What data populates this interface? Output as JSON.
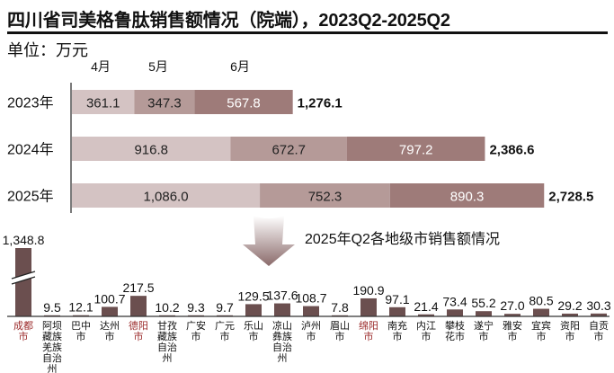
{
  "colors": {
    "month1": "#d4c3c3",
    "month2": "#b59a98",
    "month3": "#9e7b79",
    "city_bar": "#6b4f4f",
    "highlight_label": "#9b2a2a",
    "text": "#111111"
  },
  "chart_data": [
    {
      "type": "bar",
      "orientation": "horizontal",
      "stacked": true,
      "title": "四川省司美格鲁肽销售额情况（院端），2023Q2-2025Q2",
      "unit_label": "单位：万元",
      "categories": [
        "2023年",
        "2024年",
        "2025年"
      ],
      "series": [
        {
          "name": "4月",
          "values": [
            361.1,
            916.8,
            1086.0
          ],
          "labels": [
            "361.1",
            "916.8",
            "1,086.0"
          ]
        },
        {
          "name": "5月",
          "values": [
            347.3,
            672.7,
            752.3
          ],
          "labels": [
            "347.3",
            "672.7",
            "752.3"
          ]
        },
        {
          "name": "6月",
          "values": [
            567.8,
            797.2,
            890.3
          ],
          "labels": [
            "567.8",
            "797.2",
            "890.3"
          ]
        }
      ],
      "totals": [
        1276.1,
        2386.6,
        2728.5
      ],
      "total_labels": [
        "1,276.1",
        "2,386.6",
        "2,728.5"
      ],
      "xlim": [
        0,
        2800
      ],
      "grid": false
    },
    {
      "type": "bar",
      "orientation": "vertical",
      "title": "2025年Q2各地级市销售额情况",
      "axis_break_on": "成都市",
      "categories": [
        {
          "name": "成都市",
          "lines": [
            "成都",
            "市"
          ],
          "value": 1348.8,
          "label": "1,348.8",
          "highlight": true
        },
        {
          "name": "阿坝藏族羌族自治州",
          "lines": [
            "阿坝",
            "藏族",
            "羌族",
            "自治",
            "州"
          ],
          "value": 9.5,
          "label": "9.5",
          "highlight": false
        },
        {
          "name": "巴中市",
          "lines": [
            "巴中",
            "市"
          ],
          "value": 12.1,
          "label": "12.1",
          "highlight": false
        },
        {
          "name": "达州市",
          "lines": [
            "达州",
            "市"
          ],
          "value": 100.7,
          "label": "100.7",
          "highlight": false
        },
        {
          "name": "德阳市",
          "lines": [
            "德阳",
            "市"
          ],
          "value": 217.5,
          "label": "217.5",
          "highlight": true
        },
        {
          "name": "甘孜藏族自治州",
          "lines": [
            "甘孜",
            "藏族",
            "自治",
            "州"
          ],
          "value": 10.2,
          "label": "10.2",
          "highlight": false
        },
        {
          "name": "广安市",
          "lines": [
            "广安",
            "市"
          ],
          "value": 9.3,
          "label": "9.3",
          "highlight": false
        },
        {
          "name": "广元市",
          "lines": [
            "广元",
            "市"
          ],
          "value": 9.7,
          "label": "9.7",
          "highlight": false
        },
        {
          "name": "乐山市",
          "lines": [
            "乐山",
            "市"
          ],
          "value": 129.5,
          "label": "129.5",
          "highlight": false
        },
        {
          "name": "凉山彝族自治州",
          "lines": [
            "凉山",
            "彝族",
            "自治",
            "州"
          ],
          "value": 137.6,
          "label": "137.6",
          "highlight": false
        },
        {
          "name": "泸州市",
          "lines": [
            "泸州",
            "市"
          ],
          "value": 108.7,
          "label": "108.7",
          "highlight": false
        },
        {
          "name": "眉山市",
          "lines": [
            "眉山",
            "市"
          ],
          "value": 7.8,
          "label": "7.8",
          "highlight": false
        },
        {
          "name": "绵阳市",
          "lines": [
            "绵阳",
            "市"
          ],
          "value": 190.9,
          "label": "190.9",
          "highlight": true
        },
        {
          "name": "南充市",
          "lines": [
            "南充",
            "市"
          ],
          "value": 97.1,
          "label": "97.1",
          "highlight": false
        },
        {
          "name": "内江市",
          "lines": [
            "内江",
            "市"
          ],
          "value": 21.4,
          "label": "21.4",
          "highlight": false
        },
        {
          "name": "攀枝花市",
          "lines": [
            "攀枝",
            "花市"
          ],
          "value": 73.4,
          "label": "73.4",
          "highlight": false
        },
        {
          "name": "遂宁市",
          "lines": [
            "遂宁",
            "市"
          ],
          "value": 55.2,
          "label": "55.2",
          "highlight": false
        },
        {
          "name": "雅安市",
          "lines": [
            "雅安",
            "市"
          ],
          "value": 27.0,
          "label": "27.0",
          "highlight": false
        },
        {
          "name": "宜宾市",
          "lines": [
            "宜宾",
            "市"
          ],
          "value": 80.5,
          "label": "80.5",
          "highlight": false
        },
        {
          "name": "资阳市",
          "lines": [
            "资阳",
            "市"
          ],
          "value": 29.2,
          "label": "29.2",
          "highlight": false
        },
        {
          "name": "自贡市",
          "lines": [
            "自贡",
            "市"
          ],
          "value": 30.3,
          "label": "30.3",
          "highlight": false
        }
      ]
    }
  ],
  "header": {
    "title": "四川省司美格鲁肽销售额情况（院端），2023Q2-2025Q2",
    "unit": "单位：万元"
  }
}
